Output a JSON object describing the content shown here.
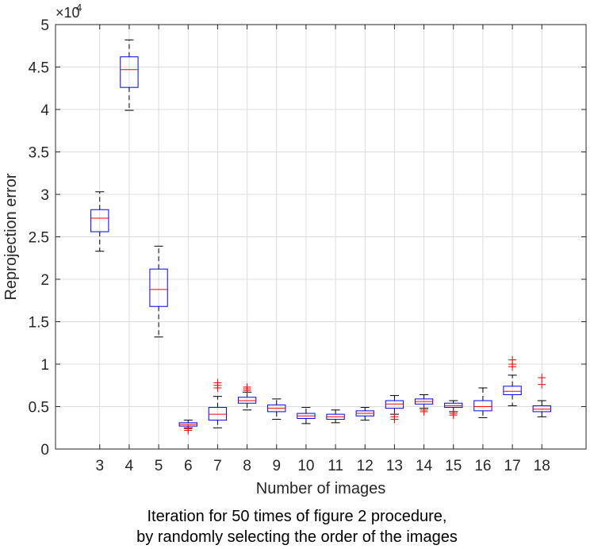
{
  "chart_data": {
    "type": "box",
    "xlabel": "Number of images",
    "ylabel": "Reprojection error",
    "y_multiplier_label": "×10",
    "y_multiplier_exponent": "4",
    "ylim": [
      0,
      5
    ],
    "yticks": [
      "0",
      "0.5",
      "1",
      "1.5",
      "2",
      "2.5",
      "3",
      "3.5",
      "4",
      "4.5",
      "5"
    ],
    "grid": true,
    "colors": {
      "box": "#0000ff",
      "median": "#ff0000",
      "whisker": "#000000",
      "outlier": "#ff0000",
      "grid": "#dcdcdc"
    },
    "boxes": [
      {
        "label": "3",
        "whislo": 2.33,
        "q1": 2.56,
        "med": 2.72,
        "q3": 2.82,
        "whishi": 3.03,
        "fliers": []
      },
      {
        "label": "4",
        "whislo": 3.99,
        "q1": 4.26,
        "med": 4.47,
        "q3": 4.62,
        "whishi": 4.82,
        "fliers": []
      },
      {
        "label": "5",
        "whislo": 1.32,
        "q1": 1.68,
        "med": 1.88,
        "q3": 2.12,
        "whishi": 2.39,
        "fliers": []
      },
      {
        "label": "6",
        "whislo": 0.25,
        "q1": 0.27,
        "med": 0.29,
        "q3": 0.31,
        "whishi": 0.34,
        "fliers": [
          0.22,
          0.24
        ]
      },
      {
        "label": "7",
        "whislo": 0.25,
        "q1": 0.34,
        "med": 0.41,
        "q3": 0.49,
        "whishi": 0.62,
        "fliers": [
          0.72,
          0.75,
          0.78
        ]
      },
      {
        "label": "8",
        "whislo": 0.46,
        "q1": 0.54,
        "med": 0.57,
        "q3": 0.61,
        "whishi": 0.67,
        "fliers": [
          0.69,
          0.71,
          0.73
        ]
      },
      {
        "label": "9",
        "whislo": 0.35,
        "q1": 0.44,
        "med": 0.48,
        "q3": 0.52,
        "whishi": 0.59,
        "fliers": []
      },
      {
        "label": "10",
        "whislo": 0.3,
        "q1": 0.36,
        "med": 0.39,
        "q3": 0.42,
        "whishi": 0.49,
        "fliers": []
      },
      {
        "label": "11",
        "whislo": 0.31,
        "q1": 0.35,
        "med": 0.38,
        "q3": 0.41,
        "whishi": 0.46,
        "fliers": []
      },
      {
        "label": "12",
        "whislo": 0.34,
        "q1": 0.39,
        "med": 0.42,
        "q3": 0.45,
        "whishi": 0.49,
        "fliers": []
      },
      {
        "label": "13",
        "whislo": 0.41,
        "q1": 0.48,
        "med": 0.53,
        "q3": 0.57,
        "whishi": 0.63,
        "fliers": [
          0.35,
          0.38
        ]
      },
      {
        "label": "14",
        "whislo": 0.48,
        "q1": 0.53,
        "med": 0.56,
        "q3": 0.59,
        "whishi": 0.64,
        "fliers": [
          0.44,
          0.46
        ]
      },
      {
        "label": "15",
        "whislo": 0.44,
        "q1": 0.49,
        "med": 0.51,
        "q3": 0.54,
        "whishi": 0.57,
        "fliers": [
          0.4,
          0.42
        ]
      },
      {
        "label": "16",
        "whislo": 0.37,
        "q1": 0.45,
        "med": 0.5,
        "q3": 0.57,
        "whishi": 0.72,
        "fliers": []
      },
      {
        "label": "17",
        "whislo": 0.51,
        "q1": 0.64,
        "med": 0.68,
        "q3": 0.74,
        "whishi": 0.87,
        "fliers": [
          0.97,
          1.0,
          1.05
        ]
      },
      {
        "label": "18",
        "whislo": 0.38,
        "q1": 0.44,
        "med": 0.47,
        "q3": 0.51,
        "whishi": 0.57,
        "fliers": [
          0.76,
          0.84
        ]
      }
    ]
  },
  "caption": {
    "line1": "Iteration for 50 times of figure 2 procedure,",
    "line2": "by randomly selecting the order of the images"
  }
}
